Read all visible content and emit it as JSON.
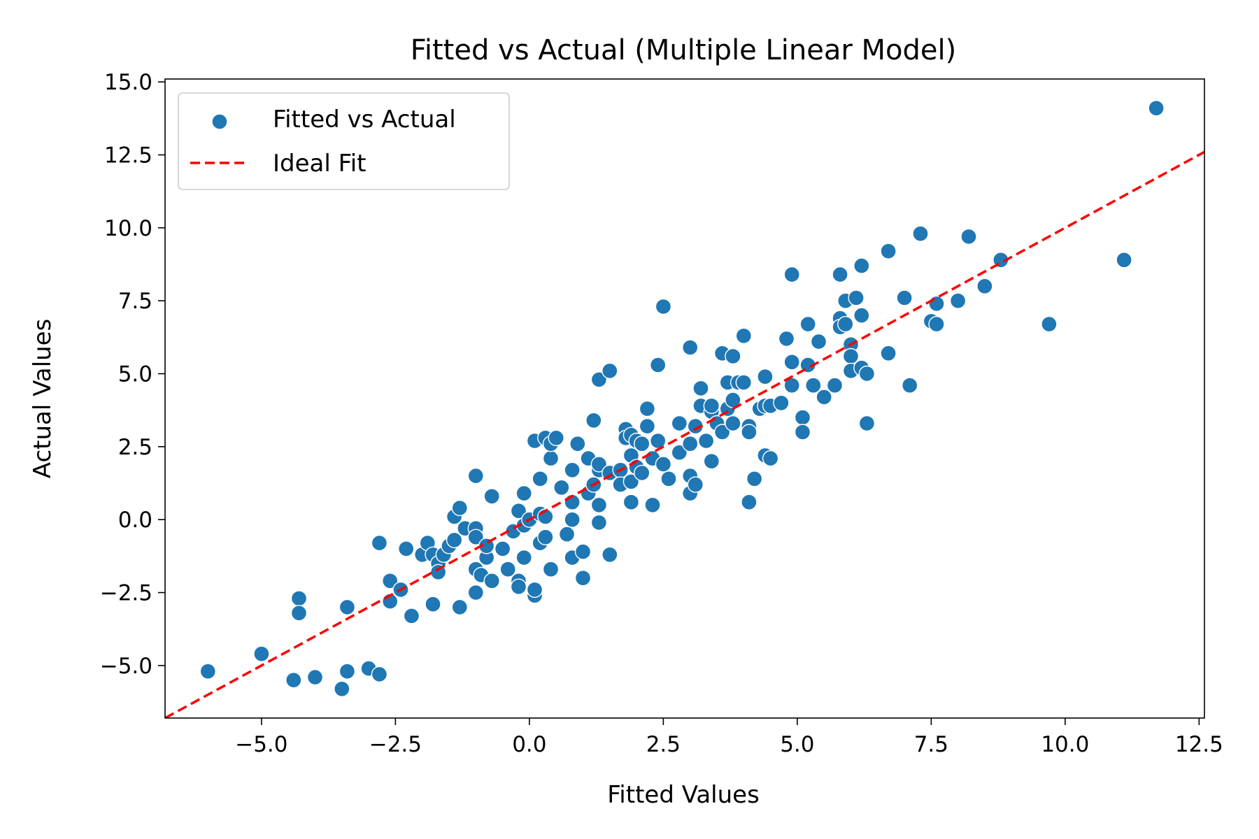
{
  "chart_data": {
    "type": "scatter",
    "title": "Fitted vs Actual (Multiple Linear Model)",
    "xlabel": "Fitted Values",
    "ylabel": "Actual Values",
    "xlim": [
      -6.8,
      12.6
    ],
    "ylim": [
      -6.8,
      15.1
    ],
    "x_ticks": [
      -5.0,
      -2.5,
      0.0,
      2.5,
      5.0,
      7.5,
      10.0,
      12.5
    ],
    "y_ticks": [
      -5.0,
      -2.5,
      0.0,
      2.5,
      5.0,
      7.5,
      10.0,
      12.5,
      15.0
    ],
    "x_tick_labels": [
      "−5.0",
      "−2.5",
      "0.0",
      "2.5",
      "5.0",
      "7.5",
      "10.0",
      "12.5"
    ],
    "y_tick_labels": [
      "−5.0",
      "−2.5",
      "0.0",
      "2.5",
      "5.0",
      "7.5",
      "10.0",
      "12.5",
      "15.0"
    ],
    "grid": false,
    "legend_position": "top-left",
    "series": [
      {
        "name": "Fitted vs Actual",
        "kind": "scatter",
        "color": "#1f77b4",
        "points": [
          [
            -6.0,
            -5.2
          ],
          [
            -5.0,
            -4.6
          ],
          [
            -4.4,
            -5.5
          ],
          [
            -4.3,
            -2.7
          ],
          [
            -4.3,
            -3.2
          ],
          [
            -4.0,
            -5.4
          ],
          [
            -3.5,
            -5.8
          ],
          [
            -3.4,
            -3.0
          ],
          [
            -3.4,
            -5.2
          ],
          [
            -3.0,
            -5.1
          ],
          [
            -2.8,
            -5.3
          ],
          [
            -2.8,
            -0.8
          ],
          [
            -2.6,
            -2.8
          ],
          [
            -2.6,
            -2.1
          ],
          [
            -2.4,
            -2.4
          ],
          [
            -2.3,
            -1.0
          ],
          [
            -2.2,
            -3.3
          ],
          [
            -2.0,
            -1.2
          ],
          [
            -1.9,
            -0.8
          ],
          [
            -1.8,
            -1.2
          ],
          [
            -1.8,
            -2.9
          ],
          [
            -1.7,
            -1.5
          ],
          [
            -1.7,
            -1.8
          ],
          [
            -1.6,
            -1.2
          ],
          [
            -1.5,
            -0.9
          ],
          [
            -1.4,
            -0.7
          ],
          [
            -1.4,
            0.1
          ],
          [
            -1.3,
            0.4
          ],
          [
            -1.3,
            -3.0
          ],
          [
            -1.2,
            -0.3
          ],
          [
            -1.0,
            -0.3
          ],
          [
            -1.0,
            -0.6
          ],
          [
            -1.0,
            1.5
          ],
          [
            -1.0,
            -1.7
          ],
          [
            -1.0,
            -2.5
          ],
          [
            -0.9,
            -1.9
          ],
          [
            -0.8,
            -1.3
          ],
          [
            -0.8,
            -0.9
          ],
          [
            -0.7,
            -2.1
          ],
          [
            -0.7,
            0.8
          ],
          [
            -0.5,
            -1.0
          ],
          [
            -0.4,
            -1.7
          ],
          [
            -0.3,
            -0.4
          ],
          [
            -0.2,
            0.3
          ],
          [
            -0.2,
            -2.3
          ],
          [
            -0.2,
            -2.1
          ],
          [
            -0.2,
            -2.3
          ],
          [
            -0.1,
            0.9
          ],
          [
            -0.1,
            -0.2
          ],
          [
            -0.1,
            -1.3
          ],
          [
            0.0,
            0.0
          ],
          [
            0.1,
            -2.6
          ],
          [
            0.1,
            2.7
          ],
          [
            0.1,
            -2.4
          ],
          [
            0.2,
            -0.8
          ],
          [
            0.2,
            1.4
          ],
          [
            0.2,
            0.2
          ],
          [
            0.3,
            2.8
          ],
          [
            0.3,
            -0.6
          ],
          [
            0.3,
            0.1
          ],
          [
            0.4,
            2.1
          ],
          [
            0.4,
            2.6
          ],
          [
            0.4,
            -1.7
          ],
          [
            0.5,
            2.8
          ],
          [
            0.6,
            1.1
          ],
          [
            0.7,
            -0.5
          ],
          [
            0.8,
            0.0
          ],
          [
            0.8,
            -1.3
          ],
          [
            0.8,
            0.6
          ],
          [
            0.8,
            1.7
          ],
          [
            0.9,
            2.6
          ],
          [
            1.0,
            -2.0
          ],
          [
            1.0,
            -1.1
          ],
          [
            1.1,
            0.9
          ],
          [
            1.1,
            2.1
          ],
          [
            1.2,
            1.2
          ],
          [
            1.2,
            3.4
          ],
          [
            1.3,
            0.5
          ],
          [
            1.3,
            1.7
          ],
          [
            1.3,
            -0.1
          ],
          [
            1.3,
            1.9
          ],
          [
            1.3,
            4.8
          ],
          [
            1.5,
            -1.2
          ],
          [
            1.5,
            1.6
          ],
          [
            1.5,
            5.1
          ],
          [
            1.7,
            1.7
          ],
          [
            1.7,
            1.2
          ],
          [
            1.8,
            3.1
          ],
          [
            1.8,
            2.8
          ],
          [
            1.9,
            2.9
          ],
          [
            1.9,
            2.2
          ],
          [
            1.9,
            1.3
          ],
          [
            1.9,
            0.6
          ],
          [
            2.0,
            2.7
          ],
          [
            2.0,
            1.8
          ],
          [
            2.1,
            2.6
          ],
          [
            2.1,
            1.6
          ],
          [
            2.2,
            3.2
          ],
          [
            2.2,
            3.8
          ],
          [
            2.3,
            0.5
          ],
          [
            2.3,
            2.1
          ],
          [
            2.4,
            2.7
          ],
          [
            2.4,
            5.3
          ],
          [
            2.5,
            7.3
          ],
          [
            2.5,
            1.9
          ],
          [
            2.6,
            1.4
          ],
          [
            2.8,
            2.3
          ],
          [
            2.8,
            3.3
          ],
          [
            3.0,
            2.6
          ],
          [
            3.0,
            0.9
          ],
          [
            3.0,
            1.5
          ],
          [
            3.0,
            5.9
          ],
          [
            3.1,
            3.2
          ],
          [
            3.1,
            1.2
          ],
          [
            3.2,
            4.5
          ],
          [
            3.2,
            3.9
          ],
          [
            3.3,
            2.7
          ],
          [
            3.4,
            3.7
          ],
          [
            3.4,
            3.9
          ],
          [
            3.4,
            2.0
          ],
          [
            3.5,
            3.3
          ],
          [
            3.6,
            5.7
          ],
          [
            3.6,
            3.0
          ],
          [
            3.7,
            3.8
          ],
          [
            3.7,
            4.7
          ],
          [
            3.8,
            5.6
          ],
          [
            3.8,
            4.1
          ],
          [
            3.8,
            3.3
          ],
          [
            3.9,
            4.7
          ],
          [
            4.0,
            6.3
          ],
          [
            4.0,
            4.7
          ],
          [
            4.1,
            3.2
          ],
          [
            4.1,
            3.0
          ],
          [
            4.1,
            0.6
          ],
          [
            4.2,
            1.4
          ],
          [
            4.3,
            3.8
          ],
          [
            4.4,
            4.9
          ],
          [
            4.4,
            2.2
          ],
          [
            4.4,
            3.9
          ],
          [
            4.5,
            3.9
          ],
          [
            4.5,
            2.1
          ],
          [
            4.7,
            4.0
          ],
          [
            4.8,
            6.2
          ],
          [
            4.9,
            8.4
          ],
          [
            4.9,
            5.4
          ],
          [
            4.9,
            4.6
          ],
          [
            5.1,
            3.5
          ],
          [
            5.1,
            3.0
          ],
          [
            5.2,
            6.7
          ],
          [
            5.2,
            5.3
          ],
          [
            5.3,
            4.6
          ],
          [
            5.4,
            6.1
          ],
          [
            5.5,
            4.2
          ],
          [
            5.7,
            4.6
          ],
          [
            5.8,
            6.9
          ],
          [
            5.8,
            8.4
          ],
          [
            5.8,
            6.6
          ],
          [
            5.9,
            7.5
          ],
          [
            5.9,
            6.7
          ],
          [
            6.0,
            6.0
          ],
          [
            6.0,
            5.6
          ],
          [
            6.0,
            5.1
          ],
          [
            6.1,
            7.6
          ],
          [
            6.2,
            8.7
          ],
          [
            6.2,
            7.0
          ],
          [
            6.2,
            5.2
          ],
          [
            6.3,
            5.0
          ],
          [
            6.3,
            3.3
          ],
          [
            6.7,
            5.7
          ],
          [
            6.7,
            9.2
          ],
          [
            7.0,
            7.6
          ],
          [
            7.1,
            4.6
          ],
          [
            7.3,
            9.8
          ],
          [
            7.5,
            6.8
          ],
          [
            7.6,
            7.4
          ],
          [
            7.6,
            6.7
          ],
          [
            8.0,
            7.5
          ],
          [
            8.2,
            9.7
          ],
          [
            8.5,
            8.0
          ],
          [
            8.8,
            8.9
          ],
          [
            9.7,
            6.7
          ],
          [
            11.1,
            8.9
          ],
          [
            11.7,
            14.1
          ]
        ]
      },
      {
        "name": "Ideal Fit",
        "kind": "line",
        "style": "dashed",
        "color": "#ff0000",
        "x": [
          -6.8,
          12.6
        ],
        "y": [
          -6.8,
          12.6
        ]
      }
    ]
  }
}
